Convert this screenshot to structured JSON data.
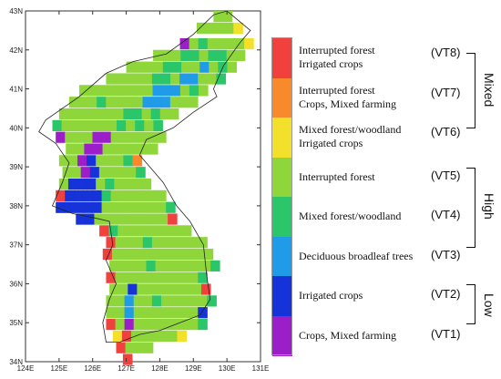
{
  "map": {
    "lat_ticks": [
      "34N",
      "35N",
      "36N",
      "37N",
      "38N",
      "39N",
      "40N",
      "41N",
      "42N",
      "43N"
    ],
    "lon_ticks": [
      "124E",
      "125E",
      "126E",
      "127E",
      "128E",
      "129E",
      "130E",
      "131E"
    ]
  },
  "legend": {
    "items": [
      {
        "code": "(VT8)",
        "line1": "Interrupted forest",
        "line2": "Irrigated crops",
        "color": "#f0413f"
      },
      {
        "code": "(VT7)",
        "line1": "Interrupted forest",
        "line2": "Crops, Mixed farming",
        "color": "#f88a2c"
      },
      {
        "code": "(VT6)",
        "line1": "Mixed forest/woodland",
        "line2": "Irrigated crops",
        "color": "#f2e02a"
      },
      {
        "code": "(VT5)",
        "line1": "Interrupted forest",
        "line2": "",
        "color": "#8ed63a"
      },
      {
        "code": "(VT4)",
        "line1": "Mixed forest/woodland",
        "line2": "",
        "color": "#2cc66a"
      },
      {
        "code": "(VT3)",
        "line1": "Deciduous broadleaf trees",
        "line2": "",
        "color": "#1f9be8"
      },
      {
        "code": "(VT2)",
        "line1": "Irrigated crops",
        "line2": "",
        "color": "#1533d9"
      },
      {
        "code": "(VT1)",
        "line1": "Crops, Mixed farming",
        "line2": "",
        "color": "#9b1ec8"
      }
    ],
    "groups": {
      "mixed": "Mixed",
      "high": "High",
      "low": "Low"
    }
  }
}
